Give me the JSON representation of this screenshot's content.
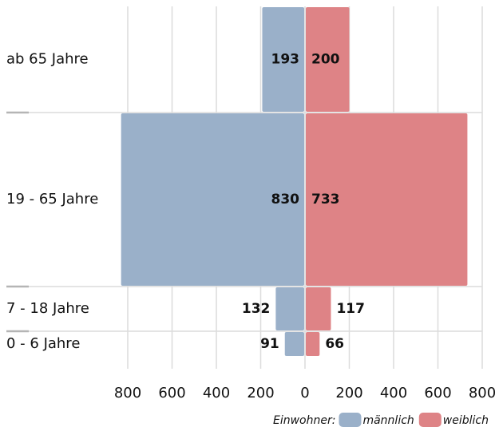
{
  "chart_data": {
    "type": "pyramid",
    "categories": [
      "ab 65 Jahre",
      "19 - 65 Jahre",
      "7 - 18 Jahre",
      "0 - 6 Jahre"
    ],
    "series": [
      {
        "name": "männlich",
        "color": "#9ab0c9",
        "values": [
          193,
          830,
          132,
          91
        ]
      },
      {
        "name": "weiblich",
        "color": "#de8386",
        "values": [
          200,
          733,
          117,
          66
        ]
      }
    ],
    "xlim": [
      -800,
      800
    ],
    "xticks": [
      {
        "value": -800,
        "label": "800"
      },
      {
        "value": -600,
        "label": "600"
      },
      {
        "value": -400,
        "label": "400"
      },
      {
        "value": -200,
        "label": "200"
      },
      0,
      200,
      400,
      600,
      800
    ],
    "legend_title": "Einwohner:",
    "grid": true
  }
}
